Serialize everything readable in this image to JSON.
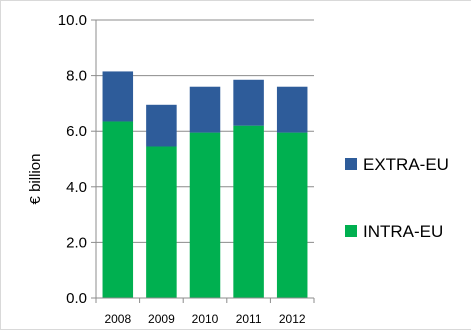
{
  "chart_data": {
    "type": "bar",
    "stacked": true,
    "categories": [
      "2008",
      "2009",
      "2010",
      "2011",
      "2012"
    ],
    "series": [
      {
        "name": "INTRA-EU",
        "color": "#00b050",
        "values": [
          6.35,
          5.45,
          5.95,
          6.2,
          5.95
        ]
      },
      {
        "name": "EXTRA-EU",
        "color": "#2e5c9a",
        "values": [
          1.8,
          1.5,
          1.65,
          1.65,
          1.65
        ]
      }
    ],
    "ylabel": "€ billion",
    "ylim": [
      0,
      10
    ],
    "yticks": [
      "0.0",
      "2.0",
      "4.0",
      "6.0",
      "8.0",
      "10.0"
    ],
    "grid": true,
    "legend_position": "right"
  }
}
